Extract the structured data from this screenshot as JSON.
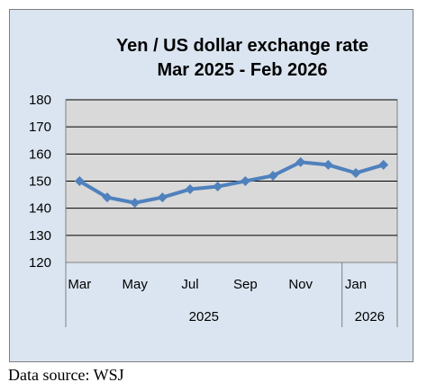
{
  "chart_data": {
    "type": "line",
    "title_lines": [
      "Yen / US dollar exchange rate",
      "Mar 2025  - Feb 2026"
    ],
    "x": [
      "Mar 2025",
      "Apr 2025",
      "May 2025",
      "Jun 2025",
      "Jul 2025",
      "Aug 2025",
      "Sep 2025",
      "Oct 2025",
      "Nov 2025",
      "Dec 2025",
      "Jan 2026",
      "Feb 2026"
    ],
    "x_tick_labels": [
      "Mar",
      "",
      "May",
      "",
      "Jul",
      "",
      "Sep",
      "",
      "Nov",
      "",
      "Jan",
      ""
    ],
    "year_groups": [
      {
        "label": "2025",
        "start": 0,
        "end": 9
      },
      {
        "label": "2026",
        "start": 10,
        "end": 11
      }
    ],
    "series": [
      {
        "values": [
          150,
          144,
          142,
          144,
          147,
          148,
          150,
          152,
          157,
          156,
          153,
          156
        ]
      }
    ],
    "ylim": [
      120,
      180
    ],
    "yticks": [
      120,
      130,
      140,
      150,
      160,
      170,
      180
    ],
    "grid": true,
    "legend": "none",
    "colors": {
      "line": "#4f81bd",
      "plot_area": "#d9d9d9",
      "chart_area": "#dbe5f1",
      "gridline": "#000000"
    }
  },
  "source_note": "Data source: WSJ"
}
